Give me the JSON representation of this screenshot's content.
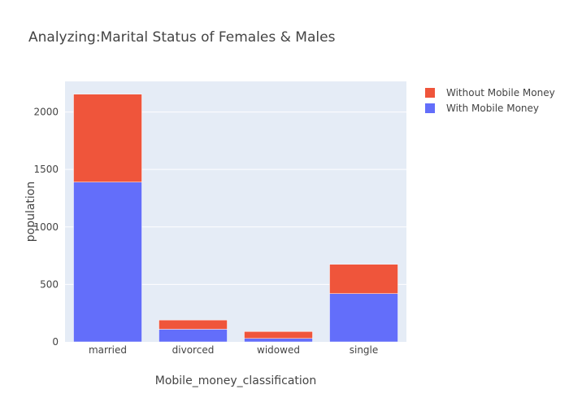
{
  "chart_data": {
    "type": "bar",
    "barmode": "stack",
    "title": "Analyzing:Marital Status of Females & Males",
    "xlabel": "Mobile_money_classification",
    "ylabel": "population",
    "categories": [
      "married",
      "divorced",
      "widowed",
      "single"
    ],
    "series": [
      {
        "name": "With Mobile Money",
        "color": "#636efa",
        "values": [
          1390,
          110,
          30,
          420
        ]
      },
      {
        "name": "Without Mobile Money",
        "color": "#ef553b",
        "values": [
          765,
          80,
          60,
          255
        ]
      }
    ],
    "ylim": [
      0,
      2266
    ],
    "yticks": [
      0,
      500,
      1000,
      1500,
      2000
    ],
    "grid": true,
    "legend_position": "top-right",
    "plot_bgcolor": "#e5ecf6"
  }
}
